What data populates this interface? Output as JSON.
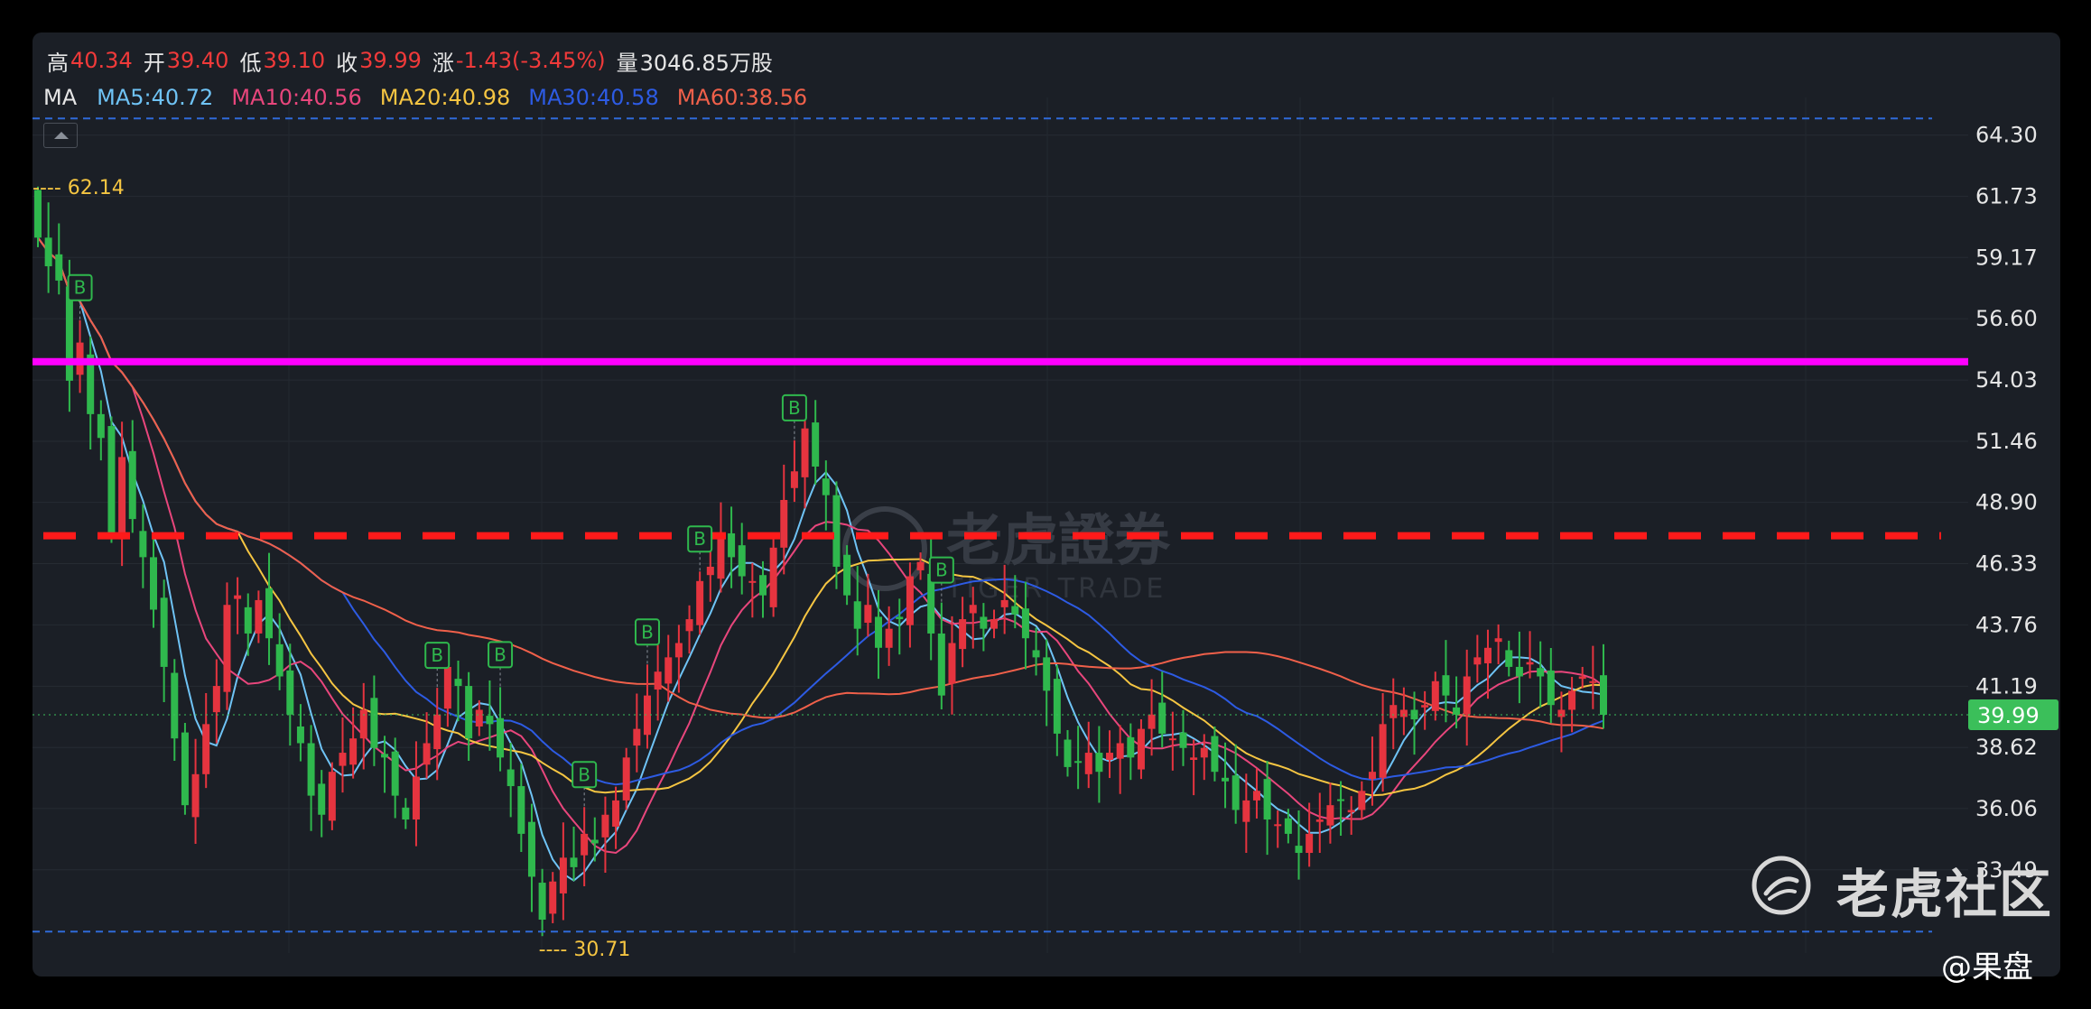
{
  "header": {
    "high_label": "高",
    "high": "40.34",
    "open_label": "开",
    "open": "39.40",
    "low_label": "低",
    "low": "39.10",
    "close_label": "收",
    "close": "39.99",
    "change_label": "涨",
    "change": "-1.43(-3.45%)",
    "volume_label": "量",
    "volume": "3046.85万股"
  },
  "ma_legend": {
    "label": "MA",
    "items": [
      {
        "text": "MA5:40.72",
        "color": "#6fc3f5"
      },
      {
        "text": "MA10:40.56",
        "color": "#e8467c"
      },
      {
        "text": "MA20:40.98",
        "color": "#f5c542"
      },
      {
        "text": "MA30:40.58",
        "color": "#2d5be3"
      },
      {
        "text": "MA60:38.56",
        "color": "#f0604a"
      }
    ]
  },
  "watermark": {
    "brand": "老虎證券",
    "sub": "TIGER TRADE"
  },
  "footer": {
    "community": "老虎社区",
    "author": "@果盘"
  },
  "colors": {
    "up": "#e5343f",
    "down": "#2fb84d",
    "magenta_line": "#ff00ff",
    "red_dashed_line": "#ff1a1a",
    "blue_dashed_line": "#2f6ad8",
    "annotation": "#f5c542"
  },
  "chart_data": {
    "type": "candlestick",
    "y_axis": {
      "min": 30.0,
      "max": 65.5,
      "ticks": [
        "64.30",
        "61.73",
        "59.17",
        "56.60",
        "54.03",
        "51.46",
        "48.90",
        "46.33",
        "43.76",
        "41.19",
        "38.62",
        "36.06",
        "33.49"
      ],
      "position": "right"
    },
    "current_price": "39.99",
    "annotations": {
      "high_marker": "62.14",
      "low_marker": "30.71"
    },
    "horizontal_lines": [
      {
        "style": "solid",
        "color": "magenta",
        "value": 54.8
      },
      {
        "style": "dashed",
        "color": "red",
        "value": 47.5
      },
      {
        "style": "dashed",
        "color": "blue",
        "value": 65.0
      },
      {
        "style": "dashed",
        "color": "blue",
        "value": 30.9
      }
    ],
    "buy_markers": [
      {
        "index": 4,
        "label": "B"
      },
      {
        "index": 38,
        "label": "B"
      },
      {
        "index": 44,
        "label": "B"
      },
      {
        "index": 52,
        "label": "B"
      },
      {
        "index": 58,
        "label": "B"
      },
      {
        "index": 63,
        "label": "B"
      },
      {
        "index": 72,
        "label": "B"
      },
      {
        "index": 86,
        "label": "B"
      }
    ],
    "closes": [
      60.0,
      58.8,
      58.2,
      54.0,
      55.6,
      52.6,
      51.6,
      47.6,
      50.8,
      48.2,
      46.6,
      44.4,
      42.0,
      39.0,
      36.2,
      37.5,
      39.6,
      41.2,
      44.6,
      45.0,
      43.4,
      44.8,
      43.2,
      41.6,
      40.0,
      38.8,
      36.6,
      35.8,
      37.6,
      38.4,
      39.0,
      40.2,
      38.6,
      38.2,
      36.6,
      35.6,
      37.4,
      38.8,
      40.0,
      42.0,
      41.2,
      39.0,
      40.2,
      39.6,
      38.2,
      37.0,
      35.0,
      33.2,
      31.4,
      33.0,
      34.0,
      33.6,
      35.0,
      34.6,
      35.8,
      36.4,
      38.2,
      39.4,
      40.8,
      41.8,
      42.4,
      43.0,
      44.0,
      45.6,
      46.2,
      47.6,
      46.6,
      45.8,
      45.6,
      45.0,
      47.0,
      49.0,
      50.2,
      52.0,
      50.4,
      49.2,
      46.2,
      45.0,
      43.6,
      44.6,
      42.8,
      43.6,
      44.0,
      45.8,
      46.4,
      43.4,
      40.8,
      43.0,
      44.0,
      44.6,
      43.6,
      44.0,
      44.8,
      44.2,
      43.2,
      42.4,
      41.0,
      39.2,
      37.8,
      38.0,
      38.4,
      37.6,
      38.4,
      38.8,
      38.2,
      39.4,
      40.0,
      39.2,
      39.0,
      38.6,
      38.2,
      38.6,
      37.6,
      37.2,
      36.0,
      36.4,
      36.8,
      35.6,
      35.4,
      35.0,
      34.2,
      35.0,
      35.6,
      36.2,
      36.4,
      36.0,
      36.8,
      37.6,
      39.6,
      40.4,
      40.2,
      39.8,
      40.4,
      41.4,
      40.8,
      40.0,
      41.6,
      42.4,
      42.8,
      43.2,
      42.0,
      41.6,
      42.2,
      41.6,
      40.4,
      40.2,
      41.0,
      41.6,
      41.4,
      39.99
    ],
    "ma_series": [
      "MA5",
      "MA10",
      "MA20",
      "MA30",
      "MA60"
    ]
  }
}
